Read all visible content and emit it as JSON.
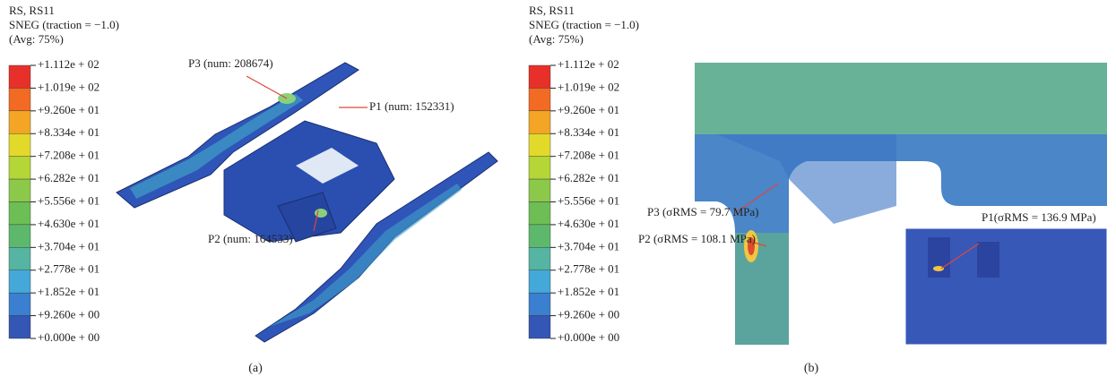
{
  "panels": [
    {
      "header": [
        "RS, RS11",
        "SNEG (traction = −1.0)",
        "(Avg: 75%)"
      ],
      "legend": [
        "+1.112e + 02",
        "+1.019e + 02",
        "+9.260e + 01",
        "+8.334e + 01",
        "+7.208e + 01",
        "+6.282e + 01",
        "+5.556e + 01",
        "+4.630e + 01",
        "+3.704e + 01",
        "+2.778e + 01",
        "+1.852e + 01",
        "+9.260e + 00",
        "+0.000e + 00"
      ],
      "annotations": [
        "P3 (num: 208674)",
        "P1 (num: 152331)",
        "P2 (num: 164533)"
      ],
      "caption": "(a)"
    },
    {
      "header": [
        "RS, RS11",
        "SNEG (traction = −1.0)",
        "(Avg: 75%)"
      ],
      "legend": [
        "+1.112e + 02",
        "+1.019e + 02",
        "+9.260e + 01",
        "+8.334e + 01",
        "+7.208e + 01",
        "+6.282e + 01",
        "+5.556e + 01",
        "+4.630e + 01",
        "+3.704e + 01",
        "+2.778e + 01",
        "+1.852e + 01",
        "+9.260e + 00",
        "+0.000e + 00"
      ],
      "annotations": [
        "P3 (σRMS = 79.7 MPa)",
        "P2 (σRMS = 108.1 MPa)",
        "P1(σRMS = 136.9 MPa)"
      ],
      "caption": "(b)"
    }
  ]
}
